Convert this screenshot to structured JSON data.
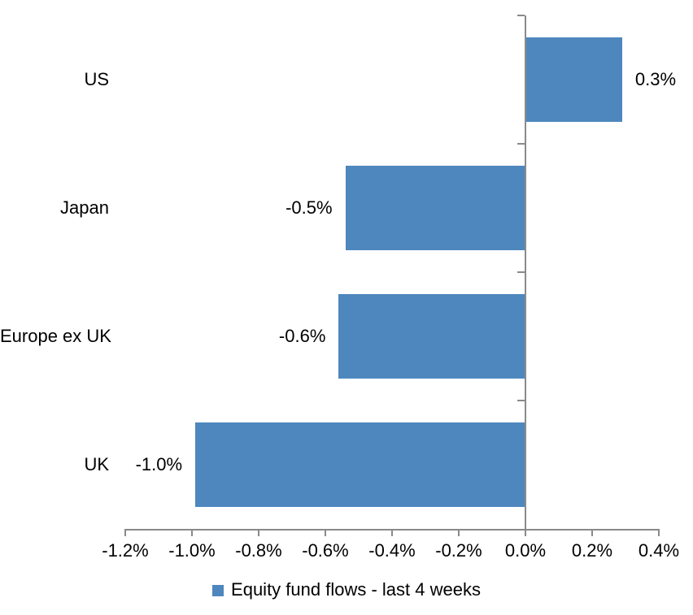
{
  "chart_data": {
    "type": "bar",
    "orientation": "horizontal",
    "categories": [
      "US",
      "Japan",
      "Europe ex UK",
      "UK"
    ],
    "values": [
      0.29,
      -0.54,
      -0.56,
      -0.99
    ],
    "data_labels": [
      "0.3%",
      "-0.5%",
      "-0.6%",
      "-1.0%"
    ],
    "value_unit": "%",
    "xlim": [
      -1.2,
      0.4
    ],
    "x_ticks": [
      {
        "value": -1.2,
        "label": "-1.2%"
      },
      {
        "value": -1.0,
        "label": "-1.0%"
      },
      {
        "value": -0.8,
        "label": "-0.8%"
      },
      {
        "value": -0.6,
        "label": "-0.6%"
      },
      {
        "value": -0.4,
        "label": "-0.4%"
      },
      {
        "value": -0.2,
        "label": "-0.2%"
      },
      {
        "value": 0.0,
        "label": "0.0%"
      },
      {
        "value": 0.2,
        "label": "0.2%"
      },
      {
        "value": 0.4,
        "label": "0.4%"
      }
    ],
    "grid": "off",
    "legend": {
      "position": "bottom",
      "label": "Equity fund flows - last 4 weeks"
    },
    "colors": {
      "bar": "#4E87BE",
      "axis": "#8A8A8A",
      "text": "#000000",
      "background": "#FFFFFF"
    }
  }
}
